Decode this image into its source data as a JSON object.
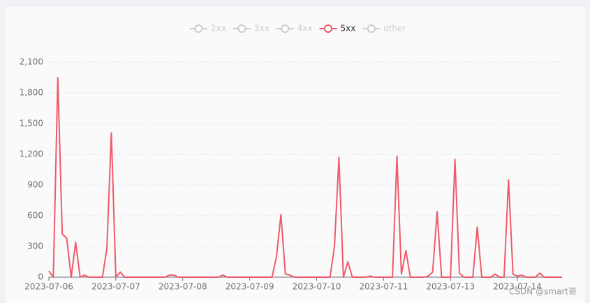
{
  "chart_data": {
    "type": "line",
    "legend": [
      {
        "name": "2xx",
        "active": false
      },
      {
        "name": "3xx",
        "active": false
      },
      {
        "name": "4xx",
        "active": false
      },
      {
        "name": "5xx",
        "active": true
      },
      {
        "name": "other",
        "active": false
      }
    ],
    "inactive_color": "#cccccc",
    "categories": [
      "2023-07-06",
      null,
      null,
      null,
      null,
      null,
      null,
      null,
      null,
      null,
      null,
      null,
      null,
      null,
      null,
      "2023-07-07",
      null,
      null,
      null,
      null,
      null,
      null,
      null,
      null,
      null,
      null,
      null,
      null,
      null,
      null,
      "2023-07-08",
      null,
      null,
      null,
      null,
      null,
      null,
      null,
      null,
      null,
      null,
      null,
      null,
      null,
      null,
      "2023-07-09",
      null,
      null,
      null,
      null,
      null,
      null,
      null,
      null,
      null,
      null,
      null,
      null,
      null,
      null,
      "2023-07-10",
      null,
      null,
      null,
      null,
      null,
      null,
      null,
      null,
      null,
      null,
      null,
      null,
      null,
      null,
      "2023-07-11",
      null,
      null,
      null,
      null,
      null,
      null,
      null,
      null,
      null,
      null,
      null,
      null,
      null,
      null,
      "2023-07-13",
      null,
      null,
      null,
      null,
      null,
      null,
      null,
      null,
      null,
      null,
      null,
      null,
      null,
      null,
      "2023-07-14",
      null,
      null,
      null,
      null,
      null,
      null,
      null,
      null,
      null,
      null
    ],
    "series": [
      {
        "name": "5xx",
        "color": "#f05a6a",
        "values": [
          60,
          0,
          1950,
          420,
          380,
          0,
          340,
          0,
          20,
          0,
          0,
          0,
          0,
          280,
          1410,
          0,
          50,
          0,
          0,
          0,
          0,
          0,
          0,
          0,
          0,
          0,
          0,
          20,
          20,
          0,
          0,
          0,
          0,
          0,
          0,
          0,
          0,
          0,
          0,
          20,
          0,
          0,
          0,
          0,
          0,
          0,
          0,
          0,
          0,
          0,
          0,
          200,
          610,
          30,
          20,
          0,
          0,
          0,
          0,
          0,
          0,
          0,
          0,
          0,
          300,
          1170,
          0,
          150,
          0,
          0,
          0,
          0,
          10,
          0,
          0,
          0,
          0,
          0,
          1180,
          30,
          260,
          0,
          0,
          0,
          0,
          10,
          50,
          640,
          0,
          0,
          0,
          1150,
          40,
          0,
          0,
          0,
          490,
          0,
          0,
          0,
          30,
          0,
          0,
          950,
          30,
          10,
          20,
          0,
          0,
          0,
          40,
          0,
          0,
          0,
          0,
          0
        ]
      }
    ],
    "ylim": [
      0,
      2100
    ],
    "yticks": [
      0,
      300,
      600,
      900,
      {
        "value": 1200,
        "label": "1,200"
      },
      {
        "value": 1500,
        "label": "1,500"
      },
      {
        "value": 1800,
        "label": "1,800"
      },
      {
        "value": 2100,
        "label": "2,100"
      }
    ],
    "grid": true,
    "watermark": "CSDN @smart哥"
  }
}
